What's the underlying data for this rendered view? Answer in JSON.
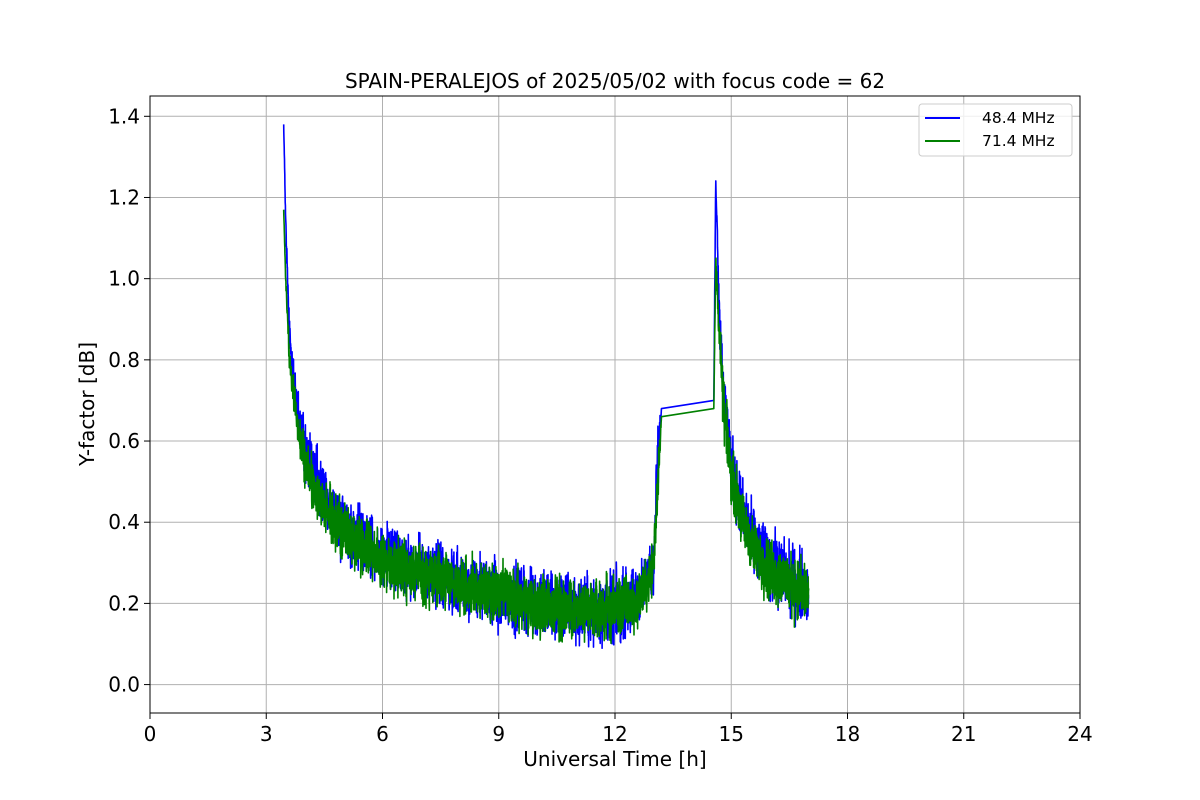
{
  "chart_data": {
    "type": "line",
    "title": "SPAIN-PERALEJOS of 2025/05/02 with focus code = 62",
    "xlabel": "Universal Time [h]",
    "ylabel": "Y-factor [dB]",
    "xlim": [
      0,
      24
    ],
    "ylim": [
      -0.07,
      1.45
    ],
    "xticks": [
      0,
      3,
      6,
      9,
      12,
      15,
      18,
      21,
      24
    ],
    "xtick_labels": [
      "0",
      "3",
      "6",
      "9",
      "12",
      "15",
      "18",
      "21",
      "24"
    ],
    "yticks": [
      0.0,
      0.2,
      0.4,
      0.6,
      0.8,
      1.0,
      1.2,
      1.4
    ],
    "ytick_labels": [
      "0.0",
      "0.2",
      "0.4",
      "0.6",
      "0.8",
      "1.0",
      "1.2",
      "1.4"
    ],
    "grid": true,
    "legend_position": "top-right",
    "series": [
      {
        "name": "48.4 MHz",
        "color": "#0000ff",
        "x": [
          3.45,
          3.5,
          3.6,
          3.8,
          4.0,
          4.3,
          4.6,
          5.0,
          5.5,
          6.0,
          6.5,
          7.0,
          7.5,
          8.0,
          8.5,
          9.0,
          9.5,
          10.0,
          10.5,
          11.0,
          11.5,
          12.0,
          12.5,
          12.8,
          13.0,
          13.1,
          13.2,
          14.55,
          14.6,
          14.7,
          14.8,
          15.0,
          15.3,
          15.6,
          16.0,
          16.5,
          17.0
        ],
        "y": [
          1.38,
          1.15,
          0.85,
          0.68,
          0.58,
          0.5,
          0.44,
          0.39,
          0.35,
          0.32,
          0.3,
          0.28,
          0.27,
          0.25,
          0.24,
          0.22,
          0.21,
          0.2,
          0.19,
          0.19,
          0.18,
          0.19,
          0.21,
          0.25,
          0.32,
          0.55,
          0.68,
          0.7,
          1.25,
          0.9,
          0.72,
          0.55,
          0.42,
          0.35,
          0.3,
          0.26,
          0.23
        ],
        "noise": [
          0.0,
          0.02,
          0.06,
          0.08,
          0.09,
          0.1,
          0.1,
          0.1,
          0.1,
          0.1,
          0.1,
          0.1,
          0.1,
          0.1,
          0.1,
          0.1,
          0.11,
          0.11,
          0.11,
          0.11,
          0.11,
          0.11,
          0.1,
          0.09,
          0.1,
          0.12,
          0.0,
          0.0,
          0.02,
          0.08,
          0.1,
          0.1,
          0.1,
          0.1,
          0.11,
          0.11,
          0.11
        ]
      },
      {
        "name": "71.4 MHz",
        "color": "#008000",
        "x": [
          3.45,
          3.5,
          3.6,
          3.8,
          4.0,
          4.3,
          4.6,
          5.0,
          5.5,
          6.0,
          6.5,
          7.0,
          7.5,
          8.0,
          8.5,
          9.0,
          9.5,
          10.0,
          10.5,
          11.0,
          11.5,
          12.0,
          12.5,
          12.8,
          13.0,
          13.1,
          13.2,
          14.55,
          14.6,
          14.7,
          14.8,
          15.0,
          15.3,
          15.6,
          16.0,
          16.5,
          17.0
        ],
        "y": [
          1.17,
          1.0,
          0.8,
          0.64,
          0.55,
          0.47,
          0.42,
          0.38,
          0.34,
          0.31,
          0.29,
          0.27,
          0.26,
          0.25,
          0.23,
          0.22,
          0.21,
          0.2,
          0.19,
          0.18,
          0.18,
          0.19,
          0.2,
          0.24,
          0.3,
          0.5,
          0.66,
          0.68,
          1.05,
          0.85,
          0.68,
          0.52,
          0.4,
          0.33,
          0.28,
          0.25,
          0.22
        ],
        "noise": [
          0.0,
          0.02,
          0.05,
          0.07,
          0.08,
          0.09,
          0.09,
          0.09,
          0.09,
          0.09,
          0.09,
          0.09,
          0.09,
          0.09,
          0.09,
          0.09,
          0.1,
          0.1,
          0.1,
          0.1,
          0.1,
          0.1,
          0.09,
          0.08,
          0.09,
          0.1,
          0.0,
          0.0,
          0.02,
          0.07,
          0.09,
          0.09,
          0.09,
          0.09,
          0.1,
          0.1,
          0.1
        ]
      }
    ]
  }
}
